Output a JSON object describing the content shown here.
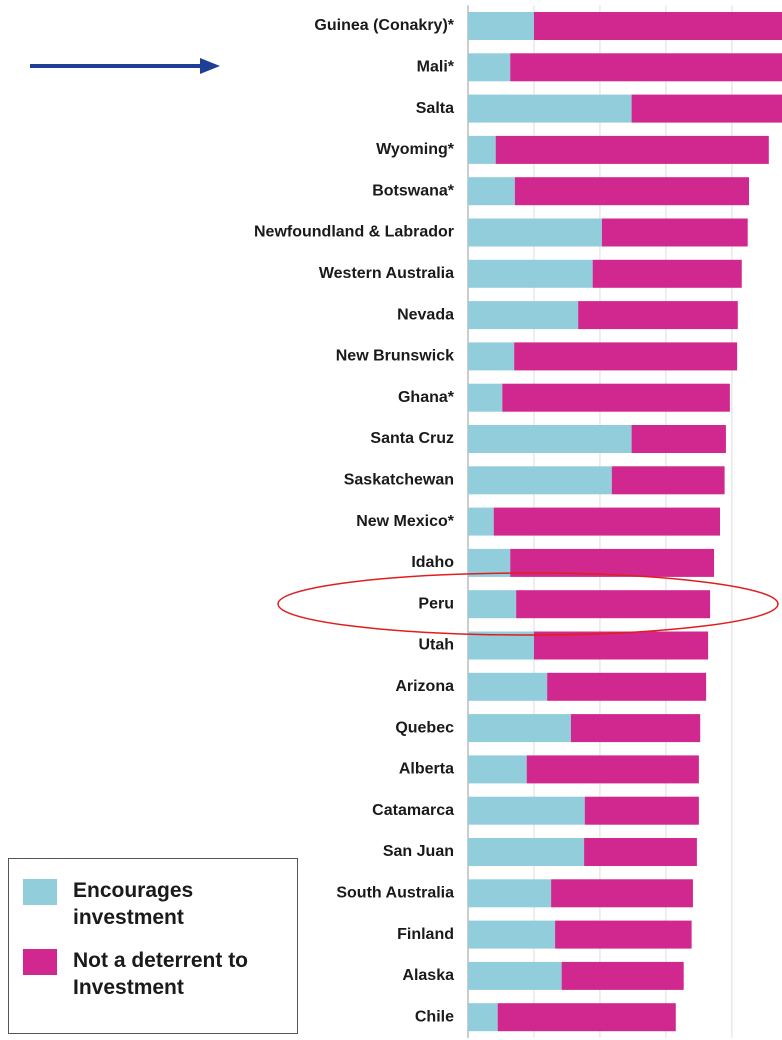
{
  "chart_data": {
    "type": "stacked_barh",
    "categories": [
      "Guinea (Conakry)*",
      "Mali*",
      "Salta",
      "Wyoming*",
      "Botswana*",
      "Newfoundland & Labrador",
      "Western Australia",
      "Nevada",
      "New Brunswick",
      "Ghana*",
      "Santa Cruz",
      "Saskatchewan",
      "New Mexico*",
      "Idaho",
      "Peru",
      "Utah",
      "Arizona",
      "Quebec",
      "Alberta",
      "Catamarca",
      "San Juan",
      "South Australia",
      "Finland",
      "Alaska",
      "Chile"
    ],
    "series": [
      {
        "name": "Encourages investment",
        "color": "#92cddc",
        "values": [
          10.0,
          6.4,
          24.8,
          4.2,
          7.1,
          20.3,
          18.9,
          16.7,
          7.0,
          5.2,
          24.8,
          21.8,
          3.9,
          6.4,
          7.3,
          10.0,
          12.0,
          15.6,
          8.9,
          17.7,
          17.6,
          12.6,
          13.2,
          14.2,
          4.5
        ]
      },
      {
        "name": "Not a deterrent to Investment",
        "color": "#d0288f",
        "values": [
          37.6,
          41.2,
          22.8,
          41.4,
          35.5,
          22.1,
          22.6,
          24.2,
          33.8,
          34.5,
          14.3,
          17.1,
          34.3,
          30.9,
          29.4,
          26.4,
          24.1,
          19.6,
          26.1,
          17.3,
          17.1,
          21.5,
          20.7,
          18.5,
          27.0
        ]
      }
    ],
    "xlim": [
      0,
      47.6
    ],
    "xticks": [
      0,
      10,
      20,
      30,
      40
    ],
    "grid": true,
    "legend": "lower left"
  }
}
